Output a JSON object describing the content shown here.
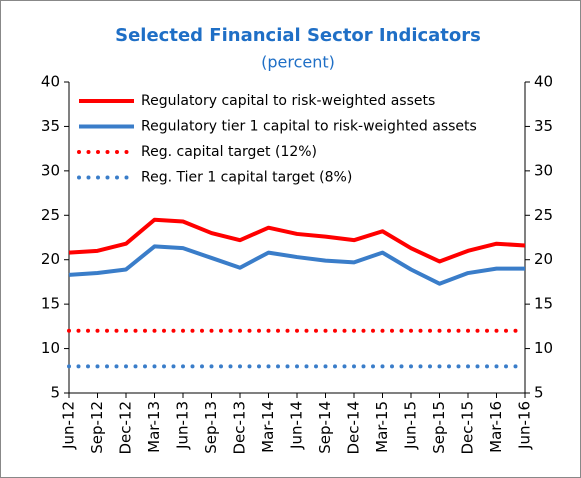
{
  "chart_data": {
    "type": "line",
    "title": "Selected Financial Sector Indicators",
    "subtitle": "(percent)",
    "categories": [
      "Jun-12",
      "Sep-12",
      "Dec-12",
      "Mar-13",
      "Jun-13",
      "Sep-13",
      "Dec-13",
      "Mar-14",
      "Jun-14",
      "Sep-14",
      "Dec-14",
      "Mar-15",
      "Jun-15",
      "Sep-15",
      "Dec-15",
      "Mar-16",
      "Jun-16"
    ],
    "series": [
      {
        "name": "Regulatory  capital to risk-weighted assets",
        "color": "#ff0000",
        "style": "solid",
        "values": [
          20.8,
          21.0,
          21.8,
          24.5,
          24.3,
          23.0,
          22.2,
          23.6,
          22.9,
          22.6,
          22.2,
          23.2,
          21.3,
          19.8,
          21.0,
          21.8,
          21.6
        ]
      },
      {
        "name": "Regulatory tier 1 capital to risk-weighted assets",
        "color": "#3a7dc9",
        "style": "solid",
        "values": [
          18.3,
          18.5,
          18.9,
          21.5,
          21.3,
          20.2,
          19.1,
          20.8,
          20.3,
          19.9,
          19.7,
          20.8,
          18.9,
          17.3,
          18.5,
          19.0,
          19.0
        ]
      },
      {
        "name": "Reg. capital target (12%)",
        "color": "#ff0000",
        "style": "dotted",
        "values": [
          12,
          12,
          12,
          12,
          12,
          12,
          12,
          12,
          12,
          12,
          12,
          12,
          12,
          12,
          12,
          12,
          12
        ]
      },
      {
        "name": "Reg. Tier 1 capital target (8%)",
        "color": "#3a7dc9",
        "style": "dotted",
        "values": [
          8,
          8,
          8,
          8,
          8,
          8,
          8,
          8,
          8,
          8,
          8,
          8,
          8,
          8,
          8,
          8,
          8
        ]
      }
    ],
    "ylim": [
      5,
      40
    ],
    "yticks": [
      5,
      10,
      15,
      20,
      25,
      30,
      35,
      40
    ],
    "y2lim": [
      5,
      40
    ],
    "y2ticks": [
      5,
      10,
      15,
      20,
      25,
      30,
      35,
      40
    ],
    "legend": "upper left",
    "grid": false
  }
}
